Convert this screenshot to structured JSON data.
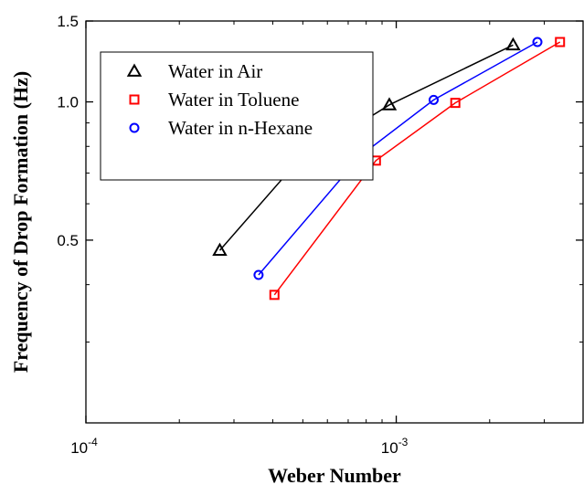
{
  "chart_data": {
    "type": "scatter",
    "xlabel": "Weber Number",
    "ylabel": "Frequency of Drop Formation (Hz)",
    "x_scale": "log",
    "y_scale": "log",
    "xlim": [
      0.0001,
      0.004
    ],
    "ylim": [
      0.2,
      1.5
    ],
    "x_ticks": [
      {
        "value": 0.0001,
        "base": "10",
        "exp": "-4"
      },
      {
        "value": 0.001,
        "base": "10",
        "exp": "-3"
      }
    ],
    "y_ticks": [
      {
        "value": 0.5,
        "label": "0.5"
      },
      {
        "value": 1.0,
        "label": "1.0"
      },
      {
        "value": 1.5,
        "label": "1.5"
      }
    ],
    "legend_position": "top-left",
    "series": [
      {
        "name": "Water in Air",
        "marker": "triangle",
        "color": "#000000",
        "x": [
          0.00027,
          0.000475,
          0.00095,
          0.00238
        ],
        "y": [
          0.475,
          0.735,
          0.985,
          1.33
        ]
      },
      {
        "name": "Water in Toluene",
        "marker": "square",
        "color": "#ff0000",
        "x": [
          0.000405,
          0.00086,
          0.00155,
          0.00337
        ],
        "y": [
          0.38,
          0.745,
          0.995,
          1.35
        ]
      },
      {
        "name": "Water in n-Hexane",
        "marker": "circle",
        "color": "#0000ff",
        "x": [
          0.00036,
          0.00077,
          0.00132,
          0.00285
        ],
        "y": [
          0.42,
          0.765,
          1.01,
          1.35
        ]
      }
    ]
  }
}
